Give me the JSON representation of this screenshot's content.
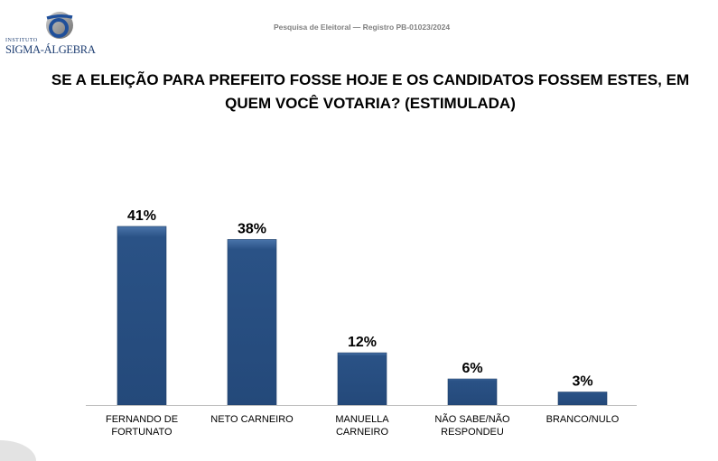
{
  "logo": {
    "top": "INSTITUTO",
    "name": "SIGMA-ÁLGEBRA"
  },
  "header": "Pesquisa de Eleitoral — Registro PB-01023/2024",
  "chart_data": {
    "type": "bar",
    "title": "SE A ELEIÇÃO PARA PREFEITO FOSSE HOJE E OS CANDIDATOS FOSSEM ESTES, EM QUEM VOCÊ VOTARIA? (ESTIMULADA)",
    "categories": [
      [
        "FERNANDO DE",
        "FORTUNATO"
      ],
      [
        "NETO CARNEIRO"
      ],
      [
        "MANUELLA",
        "CARNEIRO"
      ],
      [
        "NÃO SABE/NÃO",
        "RESPONDEU"
      ],
      [
        "BRANCO/NULO"
      ]
    ],
    "values": [
      41,
      38,
      12,
      6,
      3
    ],
    "labels": [
      "41%",
      "38%",
      "12%",
      "6%",
      "3%"
    ],
    "ylim": [
      0,
      45
    ],
    "grid": false,
    "bar_color": "#2a5286"
  }
}
